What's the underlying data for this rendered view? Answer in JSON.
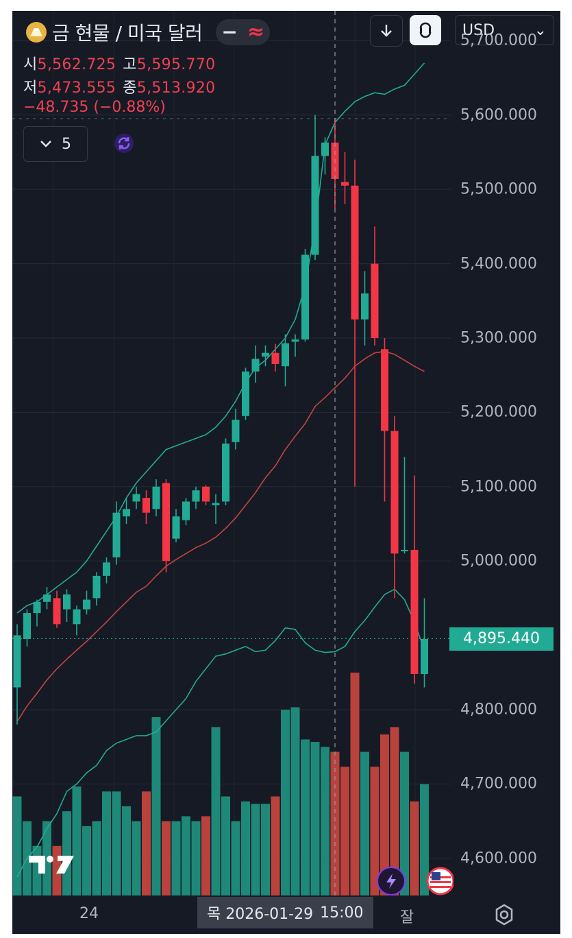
{
  "header": {
    "title": "금 현물 / 미국 달러",
    "minus_icon": "−",
    "approx_icon": "≈",
    "download_icon": "arrow-down-icon",
    "compare_icon": "compare-icon",
    "currency": "USD",
    "currency_chevron": "⌄"
  },
  "ohlc": {
    "open_label": "시",
    "open": "5,562.725",
    "high_label": "고",
    "high": "5,595.770",
    "low_label": "저",
    "low": "5,473.555",
    "close_label": "종",
    "close": "5,513.920",
    "change": "−48.735 (−0.88%)"
  },
  "indicators": {
    "count": "5"
  },
  "colors": {
    "background": "#161a25",
    "up": "#22ab94",
    "down": "#f23645",
    "bb_line": "#22ab94",
    "ma_line": "#c2453d"
  },
  "y_axis": {
    "ticks": [
      "5,700.000",
      "5,600.000",
      "5,500.000",
      "5,400.000",
      "5,300.000",
      "5,200.000",
      "5,100.000",
      "5,000.000",
      "4,800.000",
      "4,700.000",
      "4,600.000"
    ],
    "tick_values": [
      5700,
      5600,
      5500,
      5400,
      5300,
      5200,
      5100,
      5000,
      4800,
      4700,
      4600
    ]
  },
  "current_price": {
    "label": "4,895.440",
    "value": 4895.44
  },
  "x_axis": {
    "day_label": "24",
    "cut_label": "잘"
  },
  "cursor": {
    "date": "목 2026-01-29",
    "time": "15:00"
  },
  "chart_data": {
    "type": "candlestick",
    "ylim": [
      4550,
      5740
    ],
    "candles": [
      [
        4830,
        4915,
        4780,
        4900
      ],
      [
        4895,
        4935,
        4885,
        4930
      ],
      [
        4930,
        4948,
        4912,
        4945
      ],
      [
        4945,
        4965,
        4935,
        4955
      ],
      [
        4950,
        4960,
        4910,
        4915
      ],
      [
        4935,
        4962,
        4918,
        4955
      ],
      [
        4915,
        4940,
        4900,
        4935
      ],
      [
        4935,
        4960,
        4928,
        4948
      ],
      [
        4950,
        4985,
        4940,
        4980
      ],
      [
        4980,
        5005,
        4970,
        4998
      ],
      [
        5005,
        5080,
        4995,
        5065
      ],
      [
        5060,
        5085,
        5050,
        5070
      ],
      [
        5080,
        5100,
        5070,
        5090
      ],
      [
        5085,
        5095,
        5050,
        5065
      ],
      [
        5070,
        5110,
        5060,
        5100
      ],
      [
        5105,
        5110,
        4985,
        5000
      ],
      [
        5030,
        5070,
        5025,
        5060
      ],
      [
        5055,
        5085,
        5048,
        5080
      ],
      [
        5080,
        5100,
        5070,
        5095
      ],
      [
        5100,
        5102,
        5075,
        5080
      ],
      [
        5075,
        5090,
        5050,
        5078
      ],
      [
        5080,
        5165,
        5075,
        5158
      ],
      [
        5160,
        5205,
        5150,
        5190
      ],
      [
        5195,
        5260,
        5190,
        5255
      ],
      [
        5255,
        5290,
        5240,
        5272
      ],
      [
        5275,
        5290,
        5262,
        5280
      ],
      [
        5280,
        5292,
        5255,
        5265
      ],
      [
        5262,
        5305,
        5235,
        5293
      ],
      [
        5295,
        5305,
        5275,
        5298
      ],
      [
        5298,
        5420,
        5295,
        5412
      ],
      [
        5412,
        5600,
        5405,
        5545
      ],
      [
        5545,
        5570,
        5520,
        5563
      ],
      [
        5563,
        5596,
        5474,
        5514
      ],
      [
        5510,
        5550,
        5480,
        5505
      ],
      [
        5505,
        5540,
        5100,
        5325
      ],
      [
        5325,
        5390,
        5290,
        5360
      ],
      [
        5400,
        5450,
        5290,
        5300
      ],
      [
        5285,
        5300,
        5080,
        5175
      ],
      [
        5175,
        5195,
        4950,
        5010
      ],
      [
        5015,
        5140,
        5010,
        5015
      ],
      [
        5015,
        5115,
        4835,
        4848
      ],
      [
        4848,
        4950,
        4830,
        4895
      ]
    ],
    "bb_upper": [
      4930,
      4940,
      4945,
      4955,
      4965,
      4975,
      4985,
      5000,
      5020,
      5040,
      5060,
      5085,
      5105,
      5120,
      5135,
      5150,
      5155,
      5160,
      5165,
      5170,
      5180,
      5195,
      5215,
      5240,
      5260,
      5270,
      5285,
      5300,
      5325,
      5370,
      5450,
      5560,
      5590,
      5605,
      5618,
      5625,
      5630,
      5628,
      5635,
      5640,
      5655,
      5670
    ],
    "bb_lower": [
      4575,
      4600,
      4615,
      4640,
      4660,
      4690,
      4700,
      4715,
      4725,
      4745,
      4755,
      4760,
      4765,
      4765,
      4770,
      4785,
      4800,
      4815,
      4838,
      4855,
      4872,
      4875,
      4880,
      4885,
      4878,
      4880,
      4893,
      4910,
      4908,
      4890,
      4880,
      4877,
      4878,
      4885,
      4905,
      4920,
      4938,
      4955,
      4962,
      4948,
      4918,
      4880
    ],
    "ma": [
      4784,
      4805,
      4822,
      4840,
      4855,
      4868,
      4880,
      4892,
      4905,
      4918,
      4932,
      4945,
      4958,
      4966,
      4980,
      4993,
      5002,
      5010,
      5018,
      5024,
      5032,
      5044,
      5058,
      5075,
      5092,
      5112,
      5128,
      5150,
      5168,
      5185,
      5208,
      5220,
      5233,
      5246,
      5262,
      5272,
      5280,
      5282,
      5278,
      5270,
      5262,
      5255
    ],
    "volume": [
      0.4,
      0.3,
      0.2,
      0.3,
      0.2,
      0.34,
      0.44,
      0.28,
      0.3,
      0.42,
      0.42,
      0.36,
      0.3,
      0.42,
      0.72,
      0.3,
      0.3,
      0.32,
      0.3,
      0.32,
      0.68,
      0.4,
      0.3,
      0.38,
      0.37,
      0.37,
      0.4,
      0.75,
      0.76,
      0.63,
      0.62,
      0.6,
      0.58,
      0.52,
      0.9,
      0.58,
      0.52,
      0.65,
      0.68,
      0.58,
      0.38,
      0.45
    ],
    "volume_scale": 0.28,
    "cursor_index": 32
  }
}
